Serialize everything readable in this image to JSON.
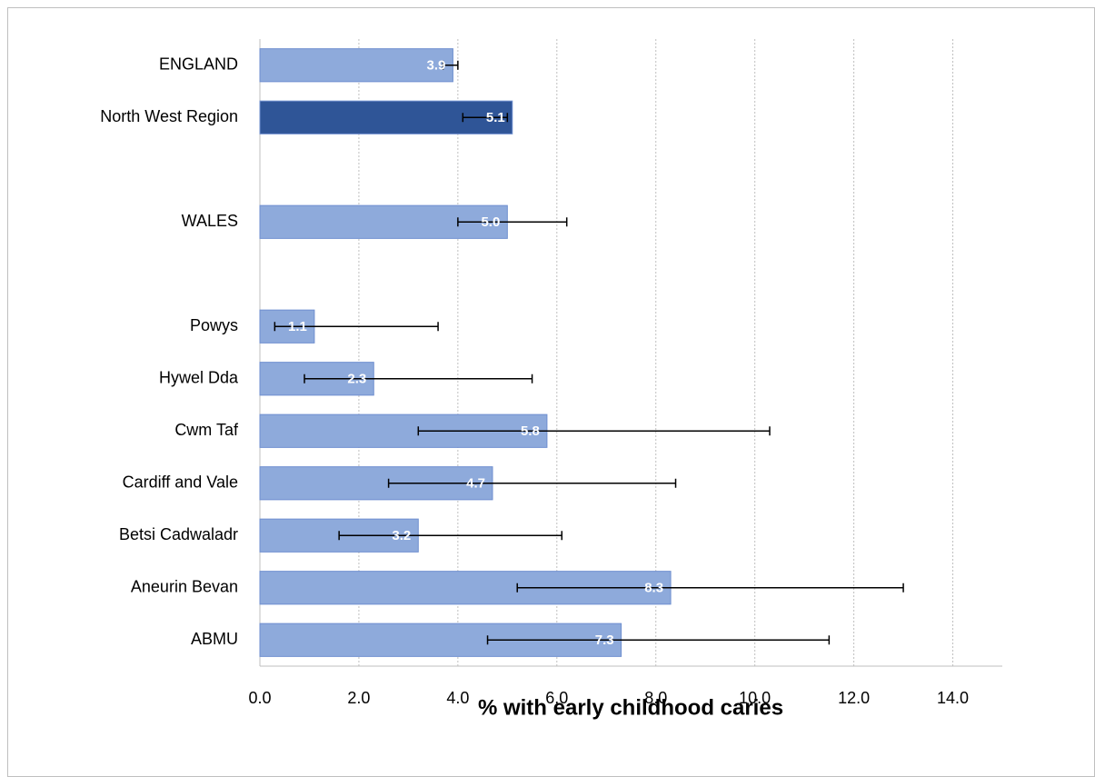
{
  "chart_data": {
    "type": "hbar",
    "categories": [
      "ENGLAND",
      "North West Region",
      null,
      "WALES",
      null,
      "Powys",
      "Hywel Dda",
      "Cwm Taf",
      "Cardiff and Vale",
      "Betsi Cadwaladr",
      "Aneurin Bevan",
      "ABMU"
    ],
    "values": [
      3.9,
      5.1,
      null,
      5.0,
      null,
      1.1,
      2.3,
      5.8,
      4.7,
      3.2,
      8.3,
      7.3
    ],
    "value_labels": [
      "3.9",
      "5.1",
      null,
      "5.0",
      null,
      "1.1",
      "2.3",
      "5.8",
      "4.7",
      "3.2",
      "8.3",
      "7.3"
    ],
    "ci_low": [
      3.7,
      4.1,
      null,
      4.0,
      null,
      0.3,
      0.9,
      3.2,
      2.6,
      1.6,
      5.2,
      4.6
    ],
    "ci_high": [
      4.0,
      5.0,
      null,
      6.2,
      null,
      3.6,
      5.5,
      10.3,
      8.4,
      6.1,
      13.0,
      11.5
    ],
    "colors": [
      "#8eaadb",
      "#2f5597",
      null,
      "#8eaadb",
      null,
      "#8eaadb",
      "#8eaadb",
      "#8eaadb",
      "#8eaadb",
      "#8eaadb",
      "#8eaadb",
      "#8eaadb"
    ],
    "xlabel": "% with early childhood caries",
    "xlim": [
      0,
      15
    ],
    "xticks": [
      {
        "value": 0,
        "label": "0.0"
      },
      {
        "value": 2,
        "label": "2.0"
      },
      {
        "value": 4,
        "label": "4.0"
      },
      {
        "value": 6,
        "label": "6.0"
      },
      {
        "value": 8,
        "label": "8.0"
      },
      {
        "value": 10,
        "label": "10.0"
      },
      {
        "value": 12,
        "label": "12.0"
      },
      {
        "value": 14,
        "label": "14.0"
      }
    ],
    "grid": true
  }
}
